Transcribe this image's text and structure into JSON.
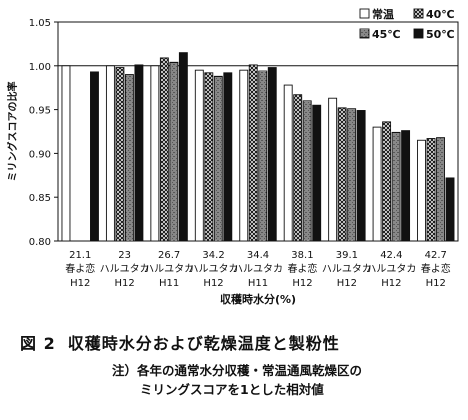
{
  "chart_data": {
    "type": "bar",
    "ylabel": "ミリングスコアの比率",
    "xlabel": "収穫時水分(%)",
    "ylim": [
      0.8,
      1.05
    ],
    "yticks": [
      "0.80",
      "0.85",
      "0.90",
      "0.95",
      "1.00",
      "1.05"
    ],
    "reference_line": 1.0,
    "categories": [
      {
        "moisture": "21.1",
        "variety": "春よ恋",
        "year": "H12"
      },
      {
        "moisture": "23",
        "variety": "ハルユタカ",
        "year": "H12"
      },
      {
        "moisture": "26.7",
        "variety": "ハルユタカ",
        "year": "H11"
      },
      {
        "moisture": "34.2",
        "variety": "ハルユタカ",
        "year": "H12"
      },
      {
        "moisture": "34.4",
        "variety": "ハルユタカ",
        "year": "H11"
      },
      {
        "moisture": "38.1",
        "variety": "春よ恋",
        "year": "H12"
      },
      {
        "moisture": "39.1",
        "variety": "ハルユタカ",
        "year": "H12"
      },
      {
        "moisture": "42.4",
        "variety": "ハルユタカ",
        "year": "H12"
      },
      {
        "moisture": "42.7",
        "variety": "春よ恋",
        "year": "H12"
      }
    ],
    "series": [
      {
        "name": "常温",
        "pattern": "white",
        "values": [
          1.0,
          1.0,
          1.0,
          0.995,
          0.995,
          0.978,
          0.963,
          0.93,
          0.915
        ]
      },
      {
        "name": "40℃",
        "pattern": "crosshatch",
        "values": [
          null,
          0.998,
          1.009,
          0.992,
          1.001,
          0.967,
          0.952,
          0.936,
          0.917
        ]
      },
      {
        "name": "45℃",
        "pattern": "brick",
        "values": [
          null,
          0.99,
          1.004,
          0.988,
          0.994,
          0.96,
          0.951,
          0.924,
          0.918
        ]
      },
      {
        "name": "50℃",
        "pattern": "black",
        "values": [
          0.993,
          1.001,
          1.015,
          0.992,
          0.998,
          0.955,
          0.949,
          0.926,
          0.872
        ]
      }
    ],
    "legend_position": "top-right"
  },
  "caption": {
    "number": "図 2",
    "title": "収穫時水分および乾燥温度と製粉性"
  },
  "note": {
    "line1": "注）各年の通常水分収穫・常温通風乾燥区の",
    "line2": "ミリングスコアを1とした相対値"
  }
}
